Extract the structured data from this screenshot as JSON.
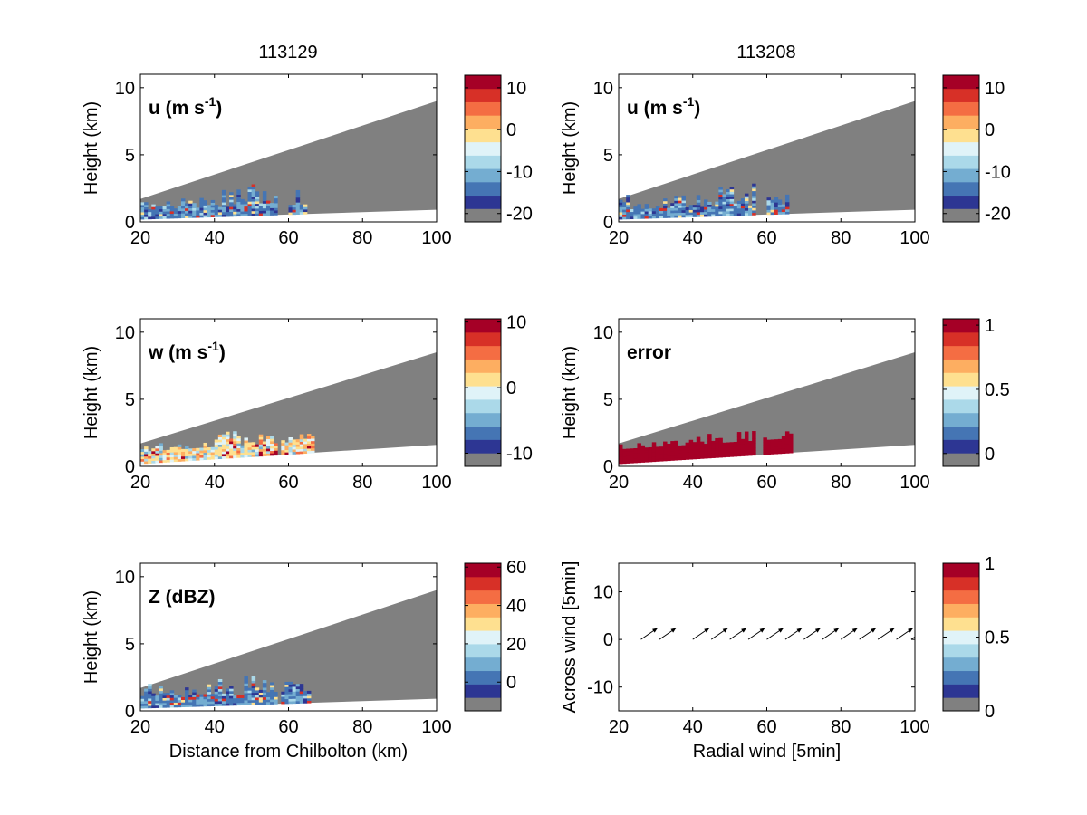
{
  "page": {
    "column_titles": [
      "113129",
      "113208"
    ]
  },
  "colors": {
    "background_wedge": "#808080",
    "colormap": [
      "#808080",
      "#2d3693",
      "#4575b4",
      "#74add1",
      "#abd9e9",
      "#e0f3f8",
      "#fee090",
      "#fdae61",
      "#f46d43",
      "#d73027",
      "#a50026"
    ]
  },
  "chart_data": [
    {
      "id": "u1",
      "type": "heatmap",
      "column": 0,
      "row": 0,
      "annotation": "u (m s",
      "annotation_sup": "-1",
      "annotation_suffix": ")",
      "xlabel": "",
      "ylabel": "Height (km)",
      "xlim": [
        20,
        100
      ],
      "ylim": [
        0,
        11
      ],
      "xticks": [
        20,
        40,
        60,
        80,
        100
      ],
      "yticks": [
        0,
        5,
        10
      ],
      "wedge": {
        "x": [
          20,
          100
        ],
        "top": [
          1.7,
          9.0
        ],
        "bottom": [
          0.2,
          0.9
        ]
      },
      "echo": {
        "x_range": [
          20,
          65
        ],
        "base_height": 0.6,
        "max_height": 2.4,
        "dominant": "blue"
      },
      "colorbar": {
        "ticks": [
          10,
          0,
          -10,
          -20
        ],
        "range": [
          -22,
          13
        ]
      }
    },
    {
      "id": "u2",
      "type": "heatmap",
      "column": 1,
      "row": 0,
      "annotation": "u (m s",
      "annotation_sup": "-1",
      "annotation_suffix": ")",
      "xlabel": "",
      "ylabel": "Height (km)",
      "xlim": [
        20,
        100
      ],
      "ylim": [
        0,
        11
      ],
      "xticks": [
        20,
        40,
        60,
        80,
        100
      ],
      "yticks": [
        0,
        5,
        10
      ],
      "wedge": {
        "x": [
          20,
          100
        ],
        "top": [
          1.7,
          9.0
        ],
        "bottom": [
          0.2,
          0.9
        ]
      },
      "echo": {
        "x_range": [
          20,
          66
        ],
        "base_height": 0.6,
        "max_height": 2.4,
        "dominant": "blue"
      },
      "colorbar": {
        "ticks": [
          10,
          0,
          -10,
          -20
        ],
        "range": [
          -22,
          13
        ]
      }
    },
    {
      "id": "w1",
      "type": "heatmap",
      "column": 0,
      "row": 1,
      "annotation": "w (m s",
      "annotation_sup": "-1",
      "annotation_suffix": ")",
      "xlabel": "",
      "ylabel": "Height (km)",
      "xlim": [
        20,
        100
      ],
      "ylim": [
        0,
        11
      ],
      "xticks": [
        20,
        40,
        60,
        80,
        100
      ],
      "yticks": [
        0,
        5,
        10
      ],
      "wedge": {
        "x": [
          20,
          100
        ],
        "top": [
          1.7,
          8.5
        ],
        "bottom": [
          0.2,
          1.6
        ]
      },
      "echo": {
        "x_range": [
          20,
          67
        ],
        "base_height": 0.8,
        "max_height": 2.0,
        "dominant": "warm"
      },
      "colorbar": {
        "ticks": [
          10,
          0,
          -10
        ],
        "range": [
          -12,
          10.5
        ]
      }
    },
    {
      "id": "err",
      "type": "heatmap",
      "column": 1,
      "row": 1,
      "annotation": "error",
      "annotation_sup": "",
      "annotation_suffix": "",
      "xlabel": "",
      "ylabel": "Height (km)",
      "xlim": [
        20,
        100
      ],
      "ylim": [
        0,
        11
      ],
      "xticks": [
        20,
        40,
        60,
        80,
        100
      ],
      "yticks": [
        0,
        5,
        10
      ],
      "wedge": {
        "x": [
          20,
          100
        ],
        "top": [
          1.7,
          8.5
        ],
        "bottom": [
          0.2,
          1.6
        ]
      },
      "echo": {
        "x_range": [
          20,
          67
        ],
        "base_height": 0.9,
        "max_height": 1.9,
        "dominant": "red"
      },
      "colorbar": {
        "ticks": [
          1,
          0.5,
          0
        ],
        "range": [
          -0.1,
          1.05
        ]
      }
    },
    {
      "id": "z1",
      "type": "heatmap",
      "column": 0,
      "row": 2,
      "annotation": "Z (dBZ)",
      "annotation_sup": "",
      "annotation_suffix": "",
      "xlabel": "Distance from Chilbolton (km)",
      "ylabel": "Height (km)",
      "xlim": [
        20,
        100
      ],
      "ylim": [
        0,
        11
      ],
      "xticks": [
        20,
        40,
        60,
        80,
        100
      ],
      "yticks": [
        0,
        5,
        10
      ],
      "wedge": {
        "x": [
          20,
          100
        ],
        "top": [
          1.7,
          9.0
        ],
        "bottom": [
          0.2,
          0.9
        ]
      },
      "echo": {
        "x_range": [
          20,
          66
        ],
        "base_height": 0.7,
        "max_height": 2.5,
        "dominant": "blue"
      },
      "colorbar": {
        "ticks": [
          60,
          40,
          20,
          0
        ],
        "range": [
          -15,
          62
        ]
      }
    },
    {
      "id": "quiv",
      "type": "scatter",
      "column": 1,
      "row": 2,
      "annotation": "",
      "annotation_sup": "",
      "annotation_suffix": "",
      "xlabel": "Radial wind [5min]",
      "ylabel": "Across wind [5min]",
      "xlim": [
        20,
        100
      ],
      "ylim": [
        -15,
        16
      ],
      "xticks": [
        20,
        40,
        60,
        80,
        100
      ],
      "yticks": [
        10,
        0,
        -10
      ],
      "arrows": {
        "x": [
          26,
          31,
          40,
          45,
          50,
          55,
          60,
          65,
          70,
          75,
          80,
          85,
          90,
          95,
          99
        ],
        "y": [
          0,
          0,
          0,
          0,
          0,
          0,
          0,
          0,
          0,
          0,
          0,
          0,
          0,
          0,
          0
        ],
        "u": [
          4.5,
          4.5,
          4.5,
          4.5,
          4.5,
          4.5,
          4.5,
          4.5,
          4.5,
          4.5,
          4.5,
          4.5,
          4.5,
          4.5,
          4.5
        ],
        "v": [
          2.4,
          2.4,
          2.4,
          2.4,
          2.4,
          2.4,
          2.4,
          2.4,
          2.4,
          2.4,
          2.4,
          2.4,
          2.4,
          2.4,
          2.4
        ]
      },
      "colorbar": {
        "ticks": [
          1,
          0.5,
          0
        ],
        "range": [
          0,
          1.0
        ]
      }
    }
  ]
}
